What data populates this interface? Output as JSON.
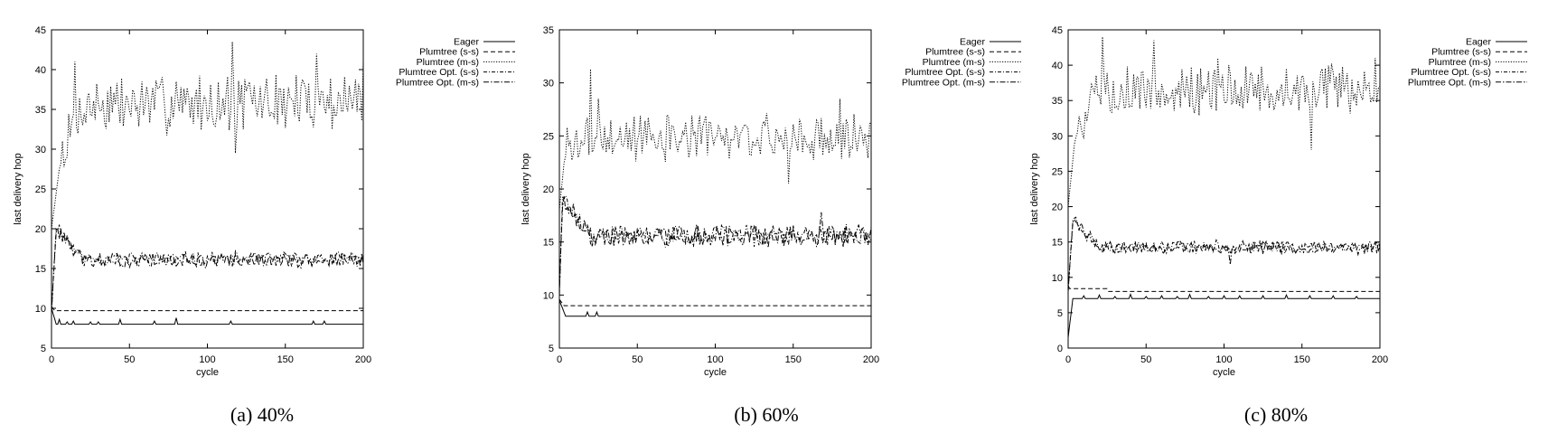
{
  "chart_data": [
    {
      "type": "line",
      "caption": "(a) 40%",
      "xlabel": "cycle",
      "ylabel": "last delivery hop",
      "xlim": [
        0,
        200
      ],
      "ylim": [
        5,
        45
      ],
      "xticks": [
        0,
        50,
        100,
        150,
        200
      ],
      "yticks": [
        5,
        10,
        15,
        20,
        25,
        30,
        35,
        40,
        45
      ],
      "legend_position": "outside-right",
      "series": [
        {
          "name": "Eager",
          "style": "solid",
          "values": "eager",
          "base": 8,
          "pattern": {
            "start": 10,
            "settle": 3,
            "spikes": [
              [
                5,
                8.6
              ],
              [
                10,
                8.3
              ],
              [
                14,
                8.4
              ],
              [
                25,
                8.3
              ],
              [
                30,
                8.3
              ],
              [
                44,
                8.6
              ],
              [
                66,
                8.4
              ],
              [
                80,
                8.8
              ],
              [
                115,
                8.4
              ],
              [
                168,
                8.4
              ],
              [
                175,
                8.4
              ]
            ]
          }
        },
        {
          "name": "Plumtree (s-s)",
          "style": "dashed",
          "values": "flat",
          "base": 9.7,
          "pattern": {
            "start": 10.2,
            "settle": 2
          }
        },
        {
          "name": "Plumtree (m-s)",
          "style": "dotted",
          "values": "noisy",
          "base": 35.5,
          "pattern": {
            "start": 20,
            "rise_to": 29,
            "rise_cycles": 6,
            "trend_end": 37.5,
            "amp": 3.2,
            "seed": 7,
            "peaks": [
              [
                15,
                41
              ],
              [
                80,
                38.5
              ],
              [
                116,
                43.5
              ],
              [
                118,
                29.5
              ],
              [
                170,
                42
              ],
              [
                200,
                41
              ]
            ]
          }
        },
        {
          "name": "Plumtree Opt. (s-s)",
          "style": "dash-dot-fine",
          "values": "noisy",
          "base": 16.2,
          "pattern": {
            "start": 9.5,
            "rise_to": 20.5,
            "rise_cycles": 3,
            "trend_end": 16.2,
            "amp": 0.8,
            "seed": 11,
            "peaks": []
          }
        },
        {
          "name": "Plumtree Opt. (m-s)",
          "style": "dash-dot",
          "values": "noisy",
          "base": 16.0,
          "pattern": {
            "start": 9.5,
            "rise_to": 20.0,
            "rise_cycles": 3,
            "trend_end": 16.0,
            "amp": 0.8,
            "seed": 13,
            "peaks": []
          }
        }
      ]
    },
    {
      "type": "line",
      "caption": "(b) 60%",
      "xlabel": "cycle",
      "ylabel": "last delivery hop",
      "xlim": [
        0,
        200
      ],
      "ylim": [
        5,
        35
      ],
      "xticks": [
        0,
        50,
        100,
        150,
        200
      ],
      "yticks": [
        5,
        10,
        15,
        20,
        25,
        30,
        35
      ],
      "legend_position": "outside-right",
      "series": [
        {
          "name": "Eager",
          "style": "solid",
          "values": "eager",
          "base": 8,
          "pattern": {
            "start": 9.5,
            "settle": 4,
            "spikes": [
              [
                18,
                8.4
              ],
              [
                24,
                8.4
              ]
            ]
          }
        },
        {
          "name": "Plumtree (s-s)",
          "style": "dashed",
          "values": "flat",
          "base": 9.0,
          "pattern": {
            "start": 9.6,
            "settle": 3
          }
        },
        {
          "name": "Plumtree (m-s)",
          "style": "dotted",
          "values": "noisy",
          "base": 24.8,
          "pattern": {
            "start": 18,
            "rise_to": 24,
            "rise_cycles": 4,
            "trend_end": 25,
            "amp": 1.9,
            "seed": 3,
            "peaks": [
              [
                20,
                31.3
              ],
              [
                25,
                28.5
              ],
              [
                147,
                20.5
              ],
              [
                180,
                28.5
              ]
            ]
          }
        },
        {
          "name": "Plumtree Opt. (s-s)",
          "style": "dash-dot-fine",
          "values": "noisy",
          "base": 15.6,
          "pattern": {
            "start": 10,
            "rise_to": 19.5,
            "rise_cycles": 2,
            "trend_end": 15.6,
            "amp": 0.9,
            "seed": 17,
            "peaks": []
          }
        },
        {
          "name": "Plumtree Opt. (m-s)",
          "style": "dash-dot",
          "values": "noisy",
          "base": 15.5,
          "pattern": {
            "start": 10,
            "rise_to": 19.0,
            "rise_cycles": 2,
            "trend_end": 15.5,
            "amp": 0.9,
            "seed": 19,
            "peaks": [
              [
                168,
                17.8
              ]
            ]
          }
        }
      ]
    },
    {
      "type": "line",
      "caption": "(c) 80%",
      "xlabel": "cycle",
      "ylabel": "last delivery hop",
      "xlim": [
        0,
        200
      ],
      "ylim": [
        0,
        45
      ],
      "xticks": [
        0,
        50,
        100,
        150,
        200
      ],
      "yticks": [
        0,
        5,
        10,
        15,
        20,
        25,
        30,
        35,
        40,
        45
      ],
      "legend_position": "outside-right",
      "series": [
        {
          "name": "Eager",
          "style": "solid",
          "values": "eager",
          "base": 7,
          "pattern": {
            "start": 1.5,
            "settle": 3,
            "spikes": [
              [
                10,
                7.4
              ],
              [
                20,
                7.5
              ],
              [
                30,
                7.3
              ],
              [
                40,
                7.6
              ],
              [
                50,
                7.3
              ],
              [
                60,
                7.4
              ],
              [
                70,
                7.3
              ],
              [
                78,
                7.6
              ],
              [
                90,
                7.3
              ],
              [
                100,
                7.4
              ],
              [
                110,
                7.4
              ],
              [
                125,
                7.4
              ],
              [
                140,
                7.5
              ],
              [
                155,
                7.4
              ],
              [
                170,
                7.4
              ],
              [
                185,
                7.3
              ]
            ]
          }
        },
        {
          "name": "Plumtree (s-s)",
          "style": "dashed",
          "values": "step",
          "base": 8.0,
          "pattern": {
            "start": 8.8,
            "hold_value": 8.4,
            "hold_until": 25
          }
        },
        {
          "name": "Plumtree (m-s)",
          "style": "dotted",
          "values": "noisy",
          "base": 36.5,
          "pattern": {
            "start": 20,
            "rise_to": 31,
            "rise_cycles": 5,
            "trend_end": 36.5,
            "amp": 3.0,
            "seed": 5,
            "peaks": [
              [
                22,
                44
              ],
              [
                55,
                43.5
              ],
              [
                96,
                41
              ],
              [
                156,
                28
              ],
              [
                197,
                41
              ]
            ]
          }
        },
        {
          "name": "Plumtree Opt. (s-s)",
          "style": "dash-dot-fine",
          "values": "noisy",
          "base": 14.3,
          "pattern": {
            "start": 8,
            "rise_to": 18.5,
            "rise_cycles": 3,
            "trend_end": 14.3,
            "amp": 0.8,
            "seed": 23,
            "peaks": []
          }
        },
        {
          "name": "Plumtree Opt. (m-s)",
          "style": "dash-dot",
          "values": "noisy",
          "base": 14.2,
          "pattern": {
            "start": 8,
            "rise_to": 18.0,
            "rise_cycles": 3,
            "trend_end": 14.2,
            "amp": 0.8,
            "seed": 29,
            "peaks": [
              [
                104,
                11.8
              ]
            ]
          }
        }
      ]
    }
  ]
}
